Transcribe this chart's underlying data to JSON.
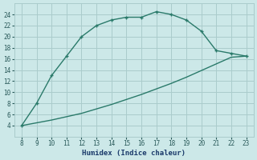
{
  "xlabel": "Humidex (Indice chaleur)",
  "bg_color": "#cce8e8",
  "grid_color": "#aacccc",
  "line_color": "#2a7a6a",
  "curve1_x": [
    8,
    9,
    10,
    11,
    12,
    13,
    14,
    15,
    16,
    17,
    18,
    19,
    20,
    21,
    22,
    23
  ],
  "curve1_y": [
    4,
    8,
    13,
    16.5,
    20,
    22,
    23,
    23.5,
    23.5,
    24.5,
    24,
    23,
    21,
    17.5,
    17,
    16.5
  ],
  "curve2_x": [
    8,
    9,
    10,
    11,
    12,
    13,
    14,
    15,
    16,
    17,
    18,
    19,
    20,
    21,
    22,
    23
  ],
  "curve2_y": [
    4.0,
    4.5,
    5.0,
    5.6,
    6.2,
    7.0,
    7.8,
    8.7,
    9.6,
    10.6,
    11.6,
    12.7,
    13.9,
    15.1,
    16.3,
    16.5
  ],
  "xlim": [
    7.5,
    23.5
  ],
  "ylim": [
    2,
    26
  ],
  "xticks": [
    8,
    9,
    10,
    11,
    12,
    13,
    14,
    15,
    16,
    17,
    18,
    19,
    20,
    21,
    22,
    23
  ],
  "yticks": [
    4,
    6,
    8,
    10,
    12,
    14,
    16,
    18,
    20,
    22,
    24
  ]
}
